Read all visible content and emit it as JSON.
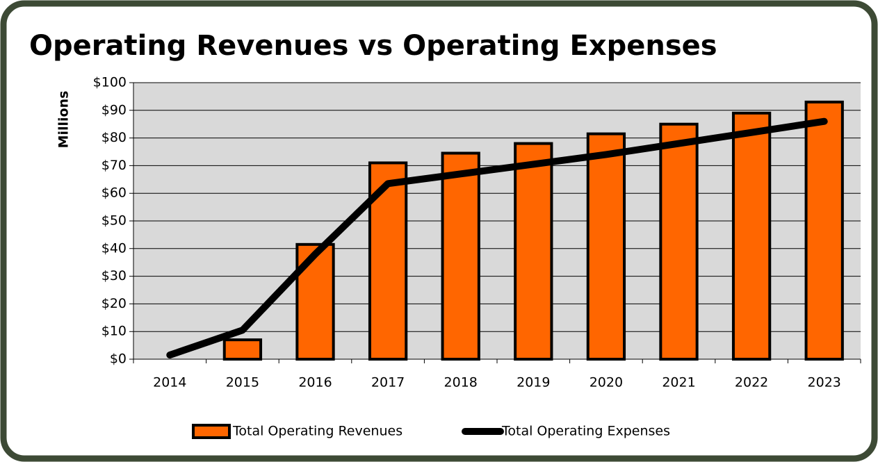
{
  "chart_data": {
    "type": "bar",
    "title": "Operating Revenues vs Operating Expenses",
    "y_label": "Millions",
    "categories": [
      "2014",
      "2015",
      "2016",
      "2017",
      "2018",
      "2019",
      "2020",
      "2021",
      "2022",
      "2023"
    ],
    "series": [
      {
        "name": "Total Operating Revenues",
        "type": "bar",
        "color": "#ff6600",
        "values": [
          null,
          7,
          41.5,
          71,
          74.5,
          78,
          81.5,
          85,
          89,
          93
        ]
      },
      {
        "name": "Total Operating Expenses",
        "type": "line",
        "color": "#000000",
        "values": [
          1.5,
          10.5,
          38,
          63.5,
          67,
          70.5,
          74,
          78,
          82,
          86
        ]
      }
    ],
    "ylim": [
      0,
      100
    ],
    "yticks": [
      {
        "value": 0,
        "label": "$0"
      },
      {
        "value": 10,
        "label": "$10"
      },
      {
        "value": 20,
        "label": "$20"
      },
      {
        "value": 30,
        "label": "$30"
      },
      {
        "value": 40,
        "label": "$40"
      },
      {
        "value": 50,
        "label": "$50"
      },
      {
        "value": 60,
        "label": "$60"
      },
      {
        "value": 70,
        "label": "$70"
      },
      {
        "value": 80,
        "label": "$80"
      },
      {
        "value": 90,
        "label": "$90"
      },
      {
        "value": 100,
        "label": "$100"
      }
    ],
    "grid": true,
    "legend": "bottom"
  }
}
